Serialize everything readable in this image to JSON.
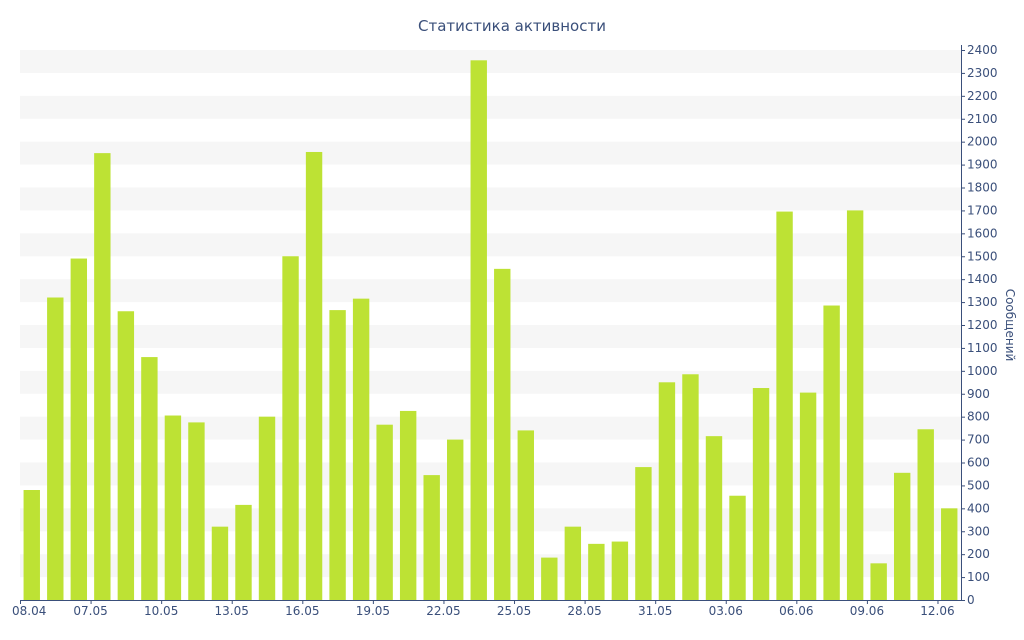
{
  "chart_data": {
    "type": "bar",
    "title": "Статистика активности",
    "ylabel": "Сообщений",
    "xlabel": "",
    "y_axis_position": "right",
    "ylim": [
      0,
      2400
    ],
    "y_ticks": [
      0,
      100,
      200,
      300,
      400,
      500,
      600,
      700,
      800,
      900,
      1000,
      1100,
      1200,
      1300,
      1400,
      1500,
      1600,
      1700,
      1800,
      1900,
      2000,
      2100,
      2200,
      2300,
      2400
    ],
    "grid": "alternating horizontal bands",
    "x_tick_labels": [
      "08.04",
      "07.05",
      "10.05",
      "13.05",
      "16.05",
      "19.05",
      "22.05",
      "25.05",
      "28.05",
      "31.05",
      "03.06",
      "06.06",
      "09.06",
      "12.06"
    ],
    "values": [
      480,
      1320,
      1490,
      1950,
      1260,
      1060,
      805,
      775,
      320,
      415,
      800,
      1500,
      1955,
      1265,
      1315,
      765,
      825,
      545,
      700,
      2355,
      1445,
      740,
      185,
      320,
      245,
      255,
      580,
      950,
      985,
      715,
      455,
      925,
      1695,
      905,
      1285,
      1700,
      160,
      555,
      745,
      400
    ],
    "colors": {
      "bar": "#bde234",
      "band": "#f6f6f6",
      "axis": "#3a4f7a",
      "text": "#3a4f7a"
    }
  }
}
